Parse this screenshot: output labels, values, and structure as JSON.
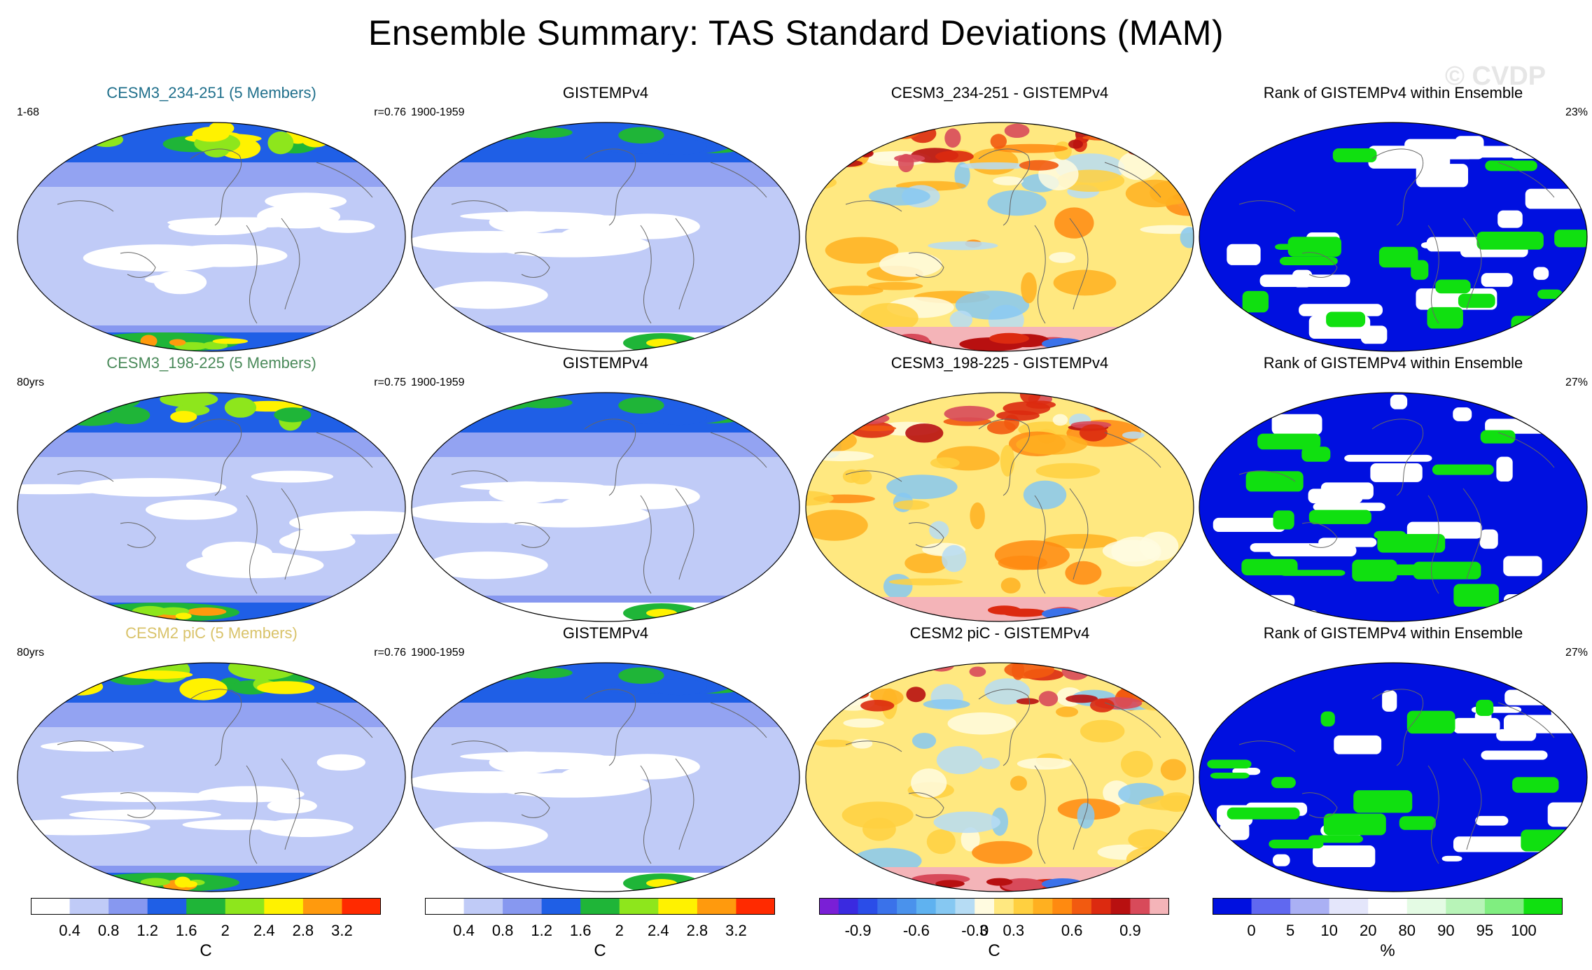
{
  "title": "Ensemble Summary: TAS Standard Deviations (MAM)",
  "watermark": "© CVDP",
  "colors": {
    "std_palette": [
      "#ffffff",
      "#c0cbf7",
      "#8798f0",
      "#1f5fe6",
      "#1fb538",
      "#8ee61c",
      "#fff200",
      "#ff9a0d",
      "#ff2a00"
    ],
    "diff_palette": [
      "#7a1fd6",
      "#3a2ae0",
      "#2a4de8",
      "#3a72ea",
      "#4a92ec",
      "#5fb2f0",
      "#86c8f2",
      "#b6dcf4",
      "#fffbe0",
      "#ffe880",
      "#ffd040",
      "#ffb020",
      "#ff8a10",
      "#f25a10",
      "#dc2a10",
      "#b81010",
      "#d84a5a",
      "#f4b4b8"
    ],
    "rank_palette": [
      "#0010e0",
      "#6068f0",
      "#aab0f4",
      "#e4e6fb",
      "#ffffff",
      "#e4fbe4",
      "#b8f4b8",
      "#80ee80",
      "#10e010"
    ],
    "model_label_colors": [
      "#1f6f8b",
      "#4a8a5a",
      "#d9c36a"
    ]
  },
  "rows": [
    {
      "model": {
        "title": "CESM3_234-251 (5 Members)",
        "left_label": "1-68",
        "right_label": "r=0.76"
      },
      "obs": {
        "title": "GISTEMPv4",
        "left_label": "1900-1959"
      },
      "diff": {
        "title": "CESM3_234-251 - GISTEMPv4"
      },
      "rank": {
        "title": "Rank of GISTEMPv4 within Ensemble",
        "right_label": "23%"
      }
    },
    {
      "model": {
        "title": "CESM3_198-225 (5 Members)",
        "left_label": "80yrs",
        "right_label": "r=0.75"
      },
      "obs": {
        "title": "GISTEMPv4",
        "left_label": "1900-1959"
      },
      "diff": {
        "title": "CESM3_198-225 - GISTEMPv4"
      },
      "rank": {
        "title": "Rank of GISTEMPv4 within Ensemble",
        "right_label": "27%"
      }
    },
    {
      "model": {
        "title": "CESM2 piC (5 Members)",
        "left_label": "80yrs",
        "right_label": "r=0.76"
      },
      "obs": {
        "title": "GISTEMPv4",
        "left_label": "1900-1959"
      },
      "diff": {
        "title": "CESM2 piC - GISTEMPv4"
      },
      "rank": {
        "title": "Rank of GISTEMPv4 within Ensemble",
        "right_label": "27%"
      }
    }
  ],
  "chart_data": [
    {
      "type": "heatmap",
      "name": "std-colorbar-model",
      "units": "C",
      "levels": [
        0.4,
        0.8,
        1.2,
        1.6,
        2,
        2.4,
        2.8,
        3.2
      ],
      "tick_labels": [
        "0.4",
        "0.8",
        "1.2",
        "1.6",
        "2",
        "2.4",
        "2.8",
        "3.2"
      ]
    },
    {
      "type": "heatmap",
      "name": "std-colorbar-obs",
      "units": "C",
      "levels": [
        0.4,
        0.8,
        1.2,
        1.6,
        2,
        2.4,
        2.8,
        3.2
      ],
      "tick_labels": [
        "0.4",
        "0.8",
        "1.2",
        "1.6",
        "2",
        "2.4",
        "2.8",
        "3.2"
      ]
    },
    {
      "type": "heatmap",
      "name": "diff-colorbar",
      "units": "C",
      "levels": [
        -0.9,
        -0.6,
        -0.3,
        0,
        0.3,
        0.6,
        0.9
      ],
      "tick_labels": [
        "-0.9",
        "-0.6",
        "-0.3",
        "0",
        "0.3",
        "0.6",
        "0.9"
      ]
    },
    {
      "type": "heatmap",
      "name": "rank-colorbar",
      "units": "%",
      "levels": [
        0,
        5,
        10,
        20,
        80,
        90,
        95,
        100
      ],
      "tick_labels": [
        "0",
        "5",
        "10",
        "20",
        "80",
        "90",
        "95",
        "100"
      ]
    }
  ]
}
